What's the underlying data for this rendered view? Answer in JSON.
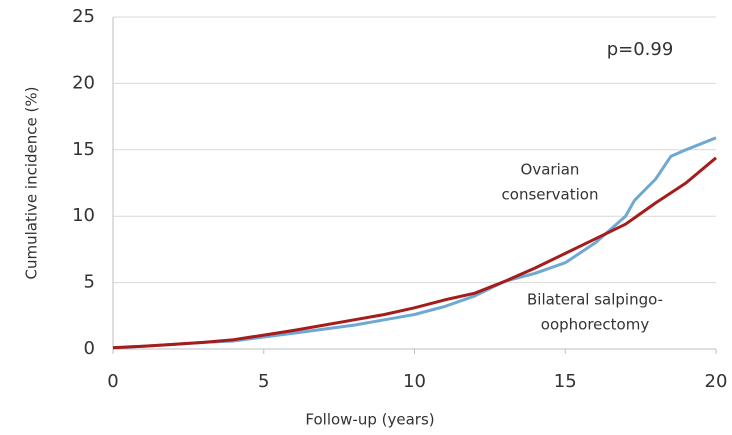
{
  "chart_data": {
    "type": "line",
    "x_label": "Follow-up (years)",
    "y_label": "Cumulative incidence (%)",
    "xlim": [
      0,
      20
    ],
    "xticks": [
      0,
      5,
      10,
      15,
      20
    ],
    "ylim": [
      0,
      25
    ],
    "yticks": [
      0,
      5,
      10,
      15,
      20,
      25
    ],
    "grid": true,
    "series": [
      {
        "color": "#6fa8d0",
        "x": [
          0,
          1,
          2,
          3,
          4,
          5,
          6,
          7,
          8,
          9,
          10,
          11,
          12,
          13,
          14,
          15,
          16,
          17,
          17.3,
          18,
          18.5,
          19,
          20
        ],
        "values": [
          0.1,
          0.2,
          0.35,
          0.5,
          0.6,
          0.9,
          1.2,
          1.5,
          1.8,
          2.2,
          2.6,
          3.2,
          4.0,
          5.1,
          5.7,
          6.5,
          8.0,
          10.0,
          11.2,
          12.8,
          14.5,
          15.0,
          15.9
        ]
      },
      {
        "color": "#a51c1c",
        "x": [
          0,
          1,
          2,
          3,
          4,
          5,
          6,
          7,
          8,
          9,
          10,
          11,
          12,
          13,
          14,
          15,
          16,
          17,
          18,
          19,
          20
        ],
        "values": [
          0.1,
          0.2,
          0.35,
          0.5,
          0.7,
          1.05,
          1.4,
          1.8,
          2.2,
          2.6,
          3.1,
          3.7,
          4.2,
          5.1,
          6.1,
          7.2,
          8.3,
          9.4,
          11.0,
          12.5,
          14.4
        ]
      }
    ],
    "annotations": [
      {
        "lines": [
          "p=0.99"
        ]
      },
      {
        "lines": [
          "Ovarian",
          "conservation"
        ]
      },
      {
        "lines": [
          "Bilateral salpingo-",
          "oophorectomy"
        ]
      }
    ]
  }
}
